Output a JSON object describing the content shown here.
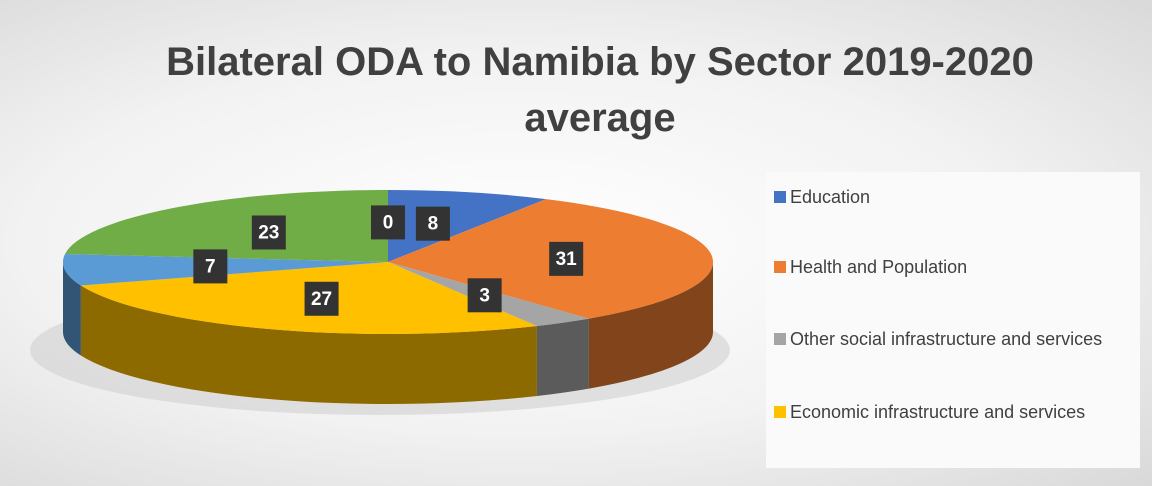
{
  "chart_data": {
    "type": "pie3d",
    "title": "Bilateral ODA to Namibia by Sector 2019-2020 average",
    "categories": [
      "Education",
      "Health and Population",
      "Other social infrastructure and services",
      "Economic infrastructure and services",
      null,
      null,
      null
    ],
    "values": [
      8,
      31,
      3,
      27,
      7,
      23,
      0
    ],
    "colors": [
      "#4472c4",
      "#ed7d31",
      "#a5a5a5",
      "#ffc000",
      "#5b9bd5",
      "#70ad47",
      "#264478"
    ],
    "legend": "right"
  }
}
